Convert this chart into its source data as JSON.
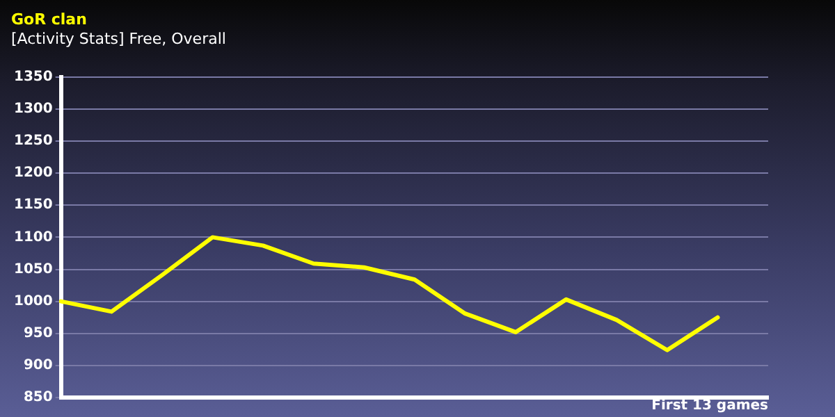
{
  "chart_data": {
    "type": "line",
    "title": "GoR clan",
    "subtitle": "[Activity Stats] Free, Overall",
    "xlabel": "First 13 games",
    "categories": [
      null,
      null,
      null,
      null,
      null,
      null,
      null,
      null,
      null,
      null,
      null,
      null,
      null,
      null,
      null
    ],
    "series": [
      {
        "color": "#ffff00",
        "values": [
          1000,
          984,
          1041,
          1100,
          1087,
          1059,
          1053,
          1034,
          981,
          952,
          1003,
          971,
          924,
          975,
          null
        ]
      }
    ],
    "ylim": [
      850,
      1350
    ],
    "yticks": [
      850,
      900,
      950,
      1000,
      1050,
      1100,
      1150,
      1200,
      1250,
      1300,
      1350
    ],
    "grid": "y",
    "legend": false,
    "marker": "none",
    "line_style": "solid",
    "tick_labels": "y"
  }
}
